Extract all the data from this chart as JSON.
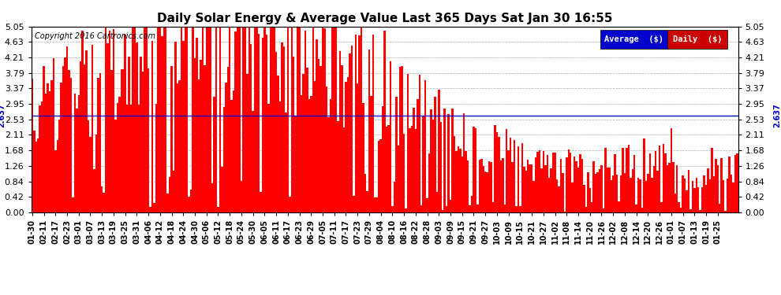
{
  "title": "Daily Solar Energy & Average Value Last 365 Days Sat Jan 30 16:55",
  "copyright": "Copyright 2016 Cartronics.com",
  "bar_color": "#FF0000",
  "average_line_color": "#0000CD",
  "average_value": 2.637,
  "ymin": 0.0,
  "ymax": 5.05,
  "yticks": [
    0.0,
    0.42,
    0.84,
    1.26,
    1.68,
    2.11,
    2.53,
    2.95,
    3.37,
    3.79,
    4.21,
    4.63,
    5.05
  ],
  "legend_avg_bg": "#0000CC",
  "legend_daily_bg": "#CC0000",
  "legend_avg_text": "Average  ($)",
  "legend_daily_text": "Daily  ($)",
  "background_color": "#FFFFFF",
  "grid_color": "#999999",
  "x_labels": [
    "01-30",
    "02-11",
    "02-17",
    "02-23",
    "03-01",
    "03-07",
    "03-13",
    "03-19",
    "03-25",
    "03-31",
    "04-06",
    "04-12",
    "04-18",
    "04-24",
    "04-30",
    "05-06",
    "05-12",
    "05-18",
    "05-24",
    "05-30",
    "06-05",
    "06-11",
    "06-17",
    "06-23",
    "06-29",
    "07-05",
    "07-11",
    "07-17",
    "07-23",
    "07-29",
    "08-04",
    "08-10",
    "08-16",
    "08-22",
    "08-28",
    "09-03",
    "09-09",
    "09-15",
    "09-21",
    "09-27",
    "10-03",
    "10-09",
    "10-15",
    "10-21",
    "10-27",
    "11-02",
    "11-08",
    "11-14",
    "11-20",
    "11-26",
    "12-02",
    "12-08",
    "12-14",
    "12-20",
    "12-26",
    "01-01",
    "01-07",
    "01-13",
    "01-19",
    "01-25"
  ],
  "n_days": 365,
  "seed": 12345,
  "bar_width": 1.0
}
